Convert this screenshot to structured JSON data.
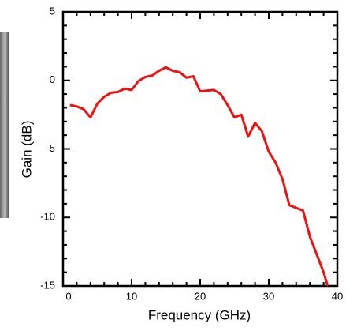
{
  "chart_data": {
    "type": "line",
    "xlabel": "Frequency (GHz)",
    "ylabel": "Gain (dB)",
    "x": [
      1,
      2,
      3,
      4,
      5,
      6,
      7,
      8,
      9,
      10,
      11,
      12,
      13,
      14,
      15,
      16,
      17,
      18,
      19,
      20,
      21,
      22,
      23,
      24,
      25,
      26,
      27,
      28,
      29,
      30,
      31,
      32,
      33,
      34,
      35,
      36,
      37,
      38,
      38.6
    ],
    "series": [
      {
        "color": "#ee1111",
        "values": [
          -1.8,
          -1.9,
          -2.1,
          -2.7,
          -1.7,
          -1.2,
          -0.9,
          -0.85,
          -0.6,
          -0.7,
          -0.05,
          0.25,
          0.35,
          0.7,
          0.95,
          0.7,
          0.6,
          0.2,
          0.3,
          -0.8,
          -0.75,
          -0.7,
          -1.0,
          -1.8,
          -2.7,
          -2.5,
          -4.1,
          -3.1,
          -3.7,
          -5.2,
          -6.0,
          -7.2,
          -9.1,
          -9.3,
          -9.5,
          -11.4,
          -12.7,
          -14.0,
          -15
        ]
      }
    ],
    "xlim": [
      0,
      40
    ],
    "xticks": [
      0,
      10,
      20,
      30,
      40
    ],
    "ylim": [
      -15,
      5
    ],
    "yticks": [
      -15,
      -10,
      -5,
      0,
      5
    ]
  }
}
